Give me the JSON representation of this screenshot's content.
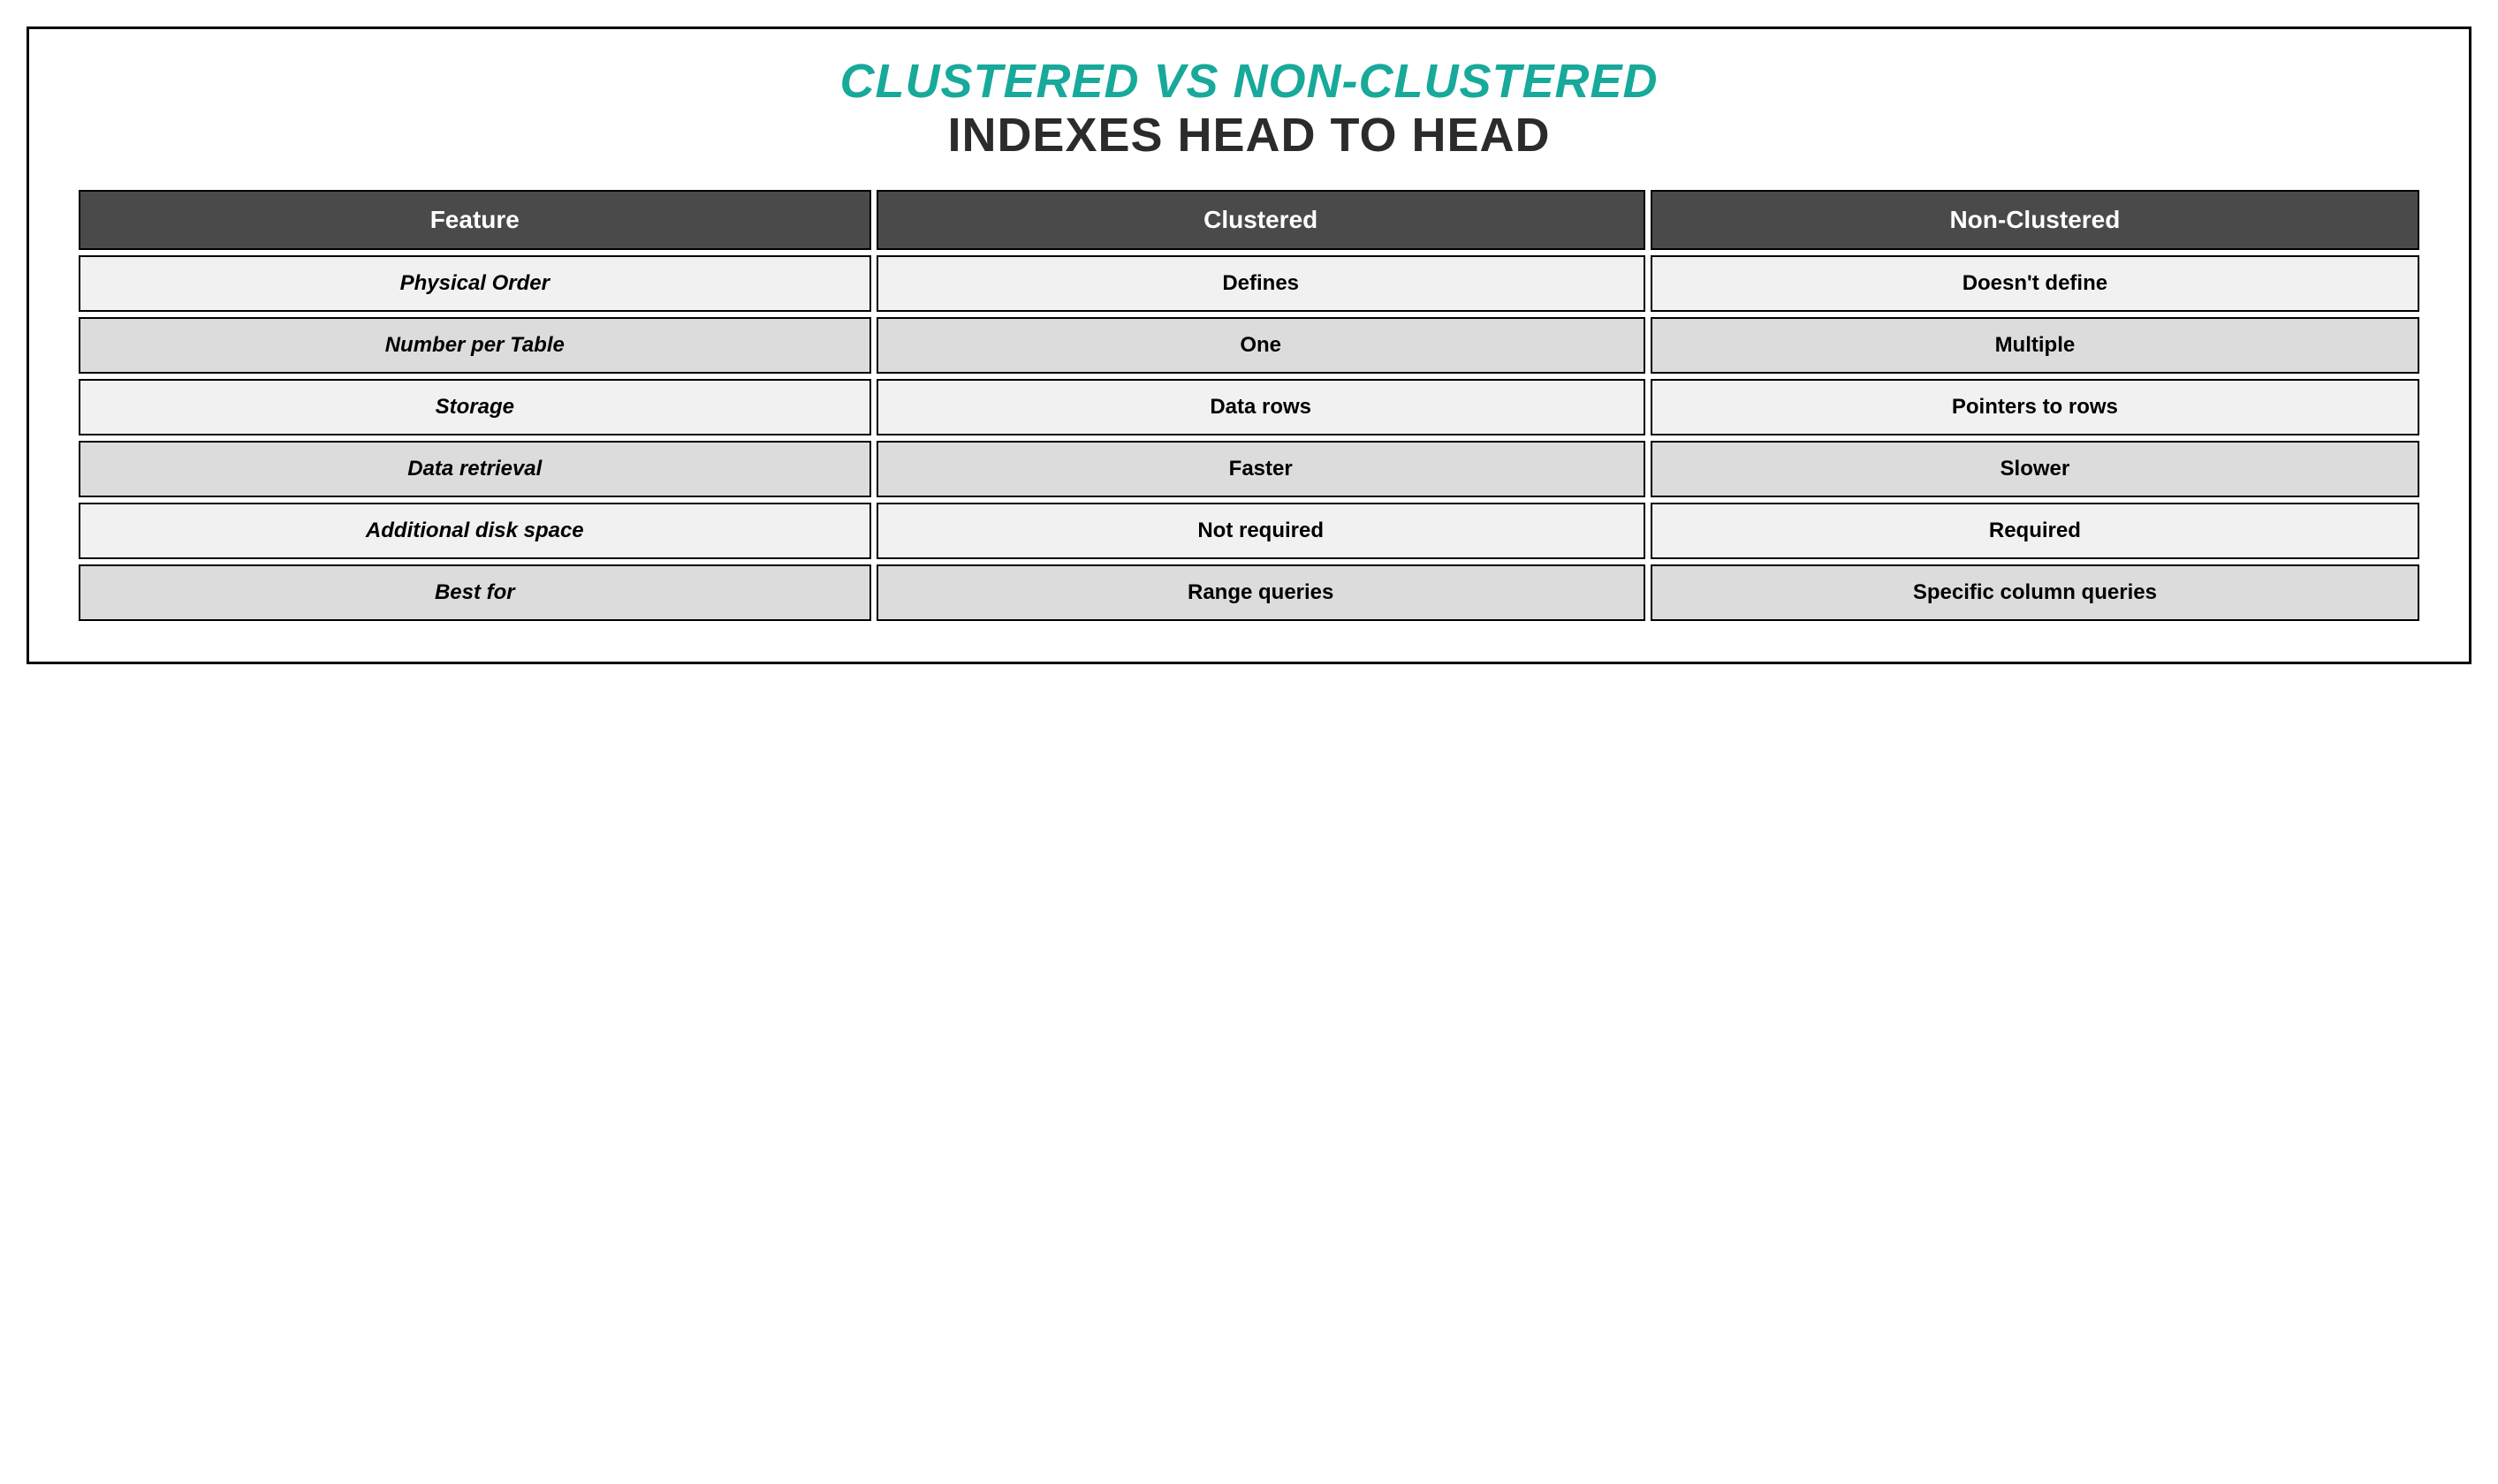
{
  "title": {
    "line1": "CLUSTERED VS NON-CLUSTERED",
    "line2": "INDEXES HEAD TO HEAD",
    "line1_color": "#17a99a",
    "line2_color": "#2b2b2b"
  },
  "table": {
    "header_bg": "#4a4a4a",
    "row_bg_light": "#f1f1f1",
    "row_bg_dark": "#dcdcdc",
    "columns": [
      "Feature",
      "Clustered",
      "Non-Clustered"
    ],
    "rows": [
      {
        "feature": "Physical Order",
        "clustered": "Defines",
        "nonclustered": "Doesn't define"
      },
      {
        "feature": "Number per Table",
        "clustered": "One",
        "nonclustered": "Multiple"
      },
      {
        "feature": "Storage",
        "clustered": "Data rows",
        "nonclustered": "Pointers to rows"
      },
      {
        "feature": "Data retrieval",
        "clustered": "Faster",
        "nonclustered": "Slower"
      },
      {
        "feature": "Additional disk space",
        "clustered": "Not required",
        "nonclustered": "Required"
      },
      {
        "feature": "Best for",
        "clustered": "Range queries",
        "nonclustered": "Specific column queries"
      }
    ]
  }
}
